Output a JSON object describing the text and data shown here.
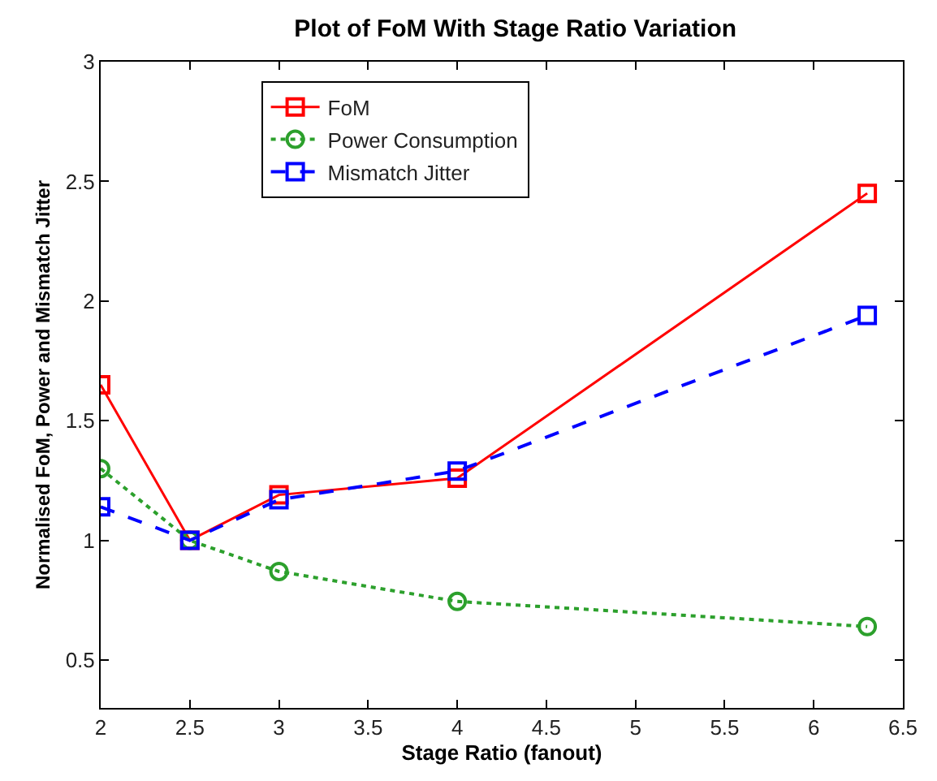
{
  "chart_data": {
    "type": "line",
    "title": "Plot of FoM With Stage Ratio Variation",
    "xlabel": "Stage Ratio (fanout)",
    "ylabel": "Normalised FoM, Power and Mismatch Jitter",
    "x": [
      2,
      2.5,
      3,
      4,
      6.3
    ],
    "series": [
      {
        "name": "FoM",
        "color": "#ff0000",
        "values": [
          1.65,
          1.0,
          1.19,
          1.26,
          2.45
        ],
        "marker": "square",
        "line_style": "solid"
      },
      {
        "name": "Power Consumption",
        "color": "#2ca02c",
        "values": [
          1.3,
          1.0,
          0.87,
          0.745,
          0.64
        ],
        "marker": "circle",
        "line_style": "dotted"
      },
      {
        "name": "Mismatch Jitter",
        "color": "#0000ff",
        "values": [
          1.14,
          1.0,
          1.17,
          1.29,
          1.94
        ],
        "marker": "square",
        "line_style": "dashed"
      }
    ],
    "xlim": [
      2,
      6.5
    ],
    "xticks": [
      2,
      2.5,
      3,
      3.5,
      4,
      4.5,
      5,
      5.5,
      6,
      6.5
    ],
    "ylim": [
      0.3,
      3
    ],
    "yticks": [
      0.5,
      1,
      1.5,
      2,
      2.5,
      3
    ],
    "legend": "top"
  }
}
